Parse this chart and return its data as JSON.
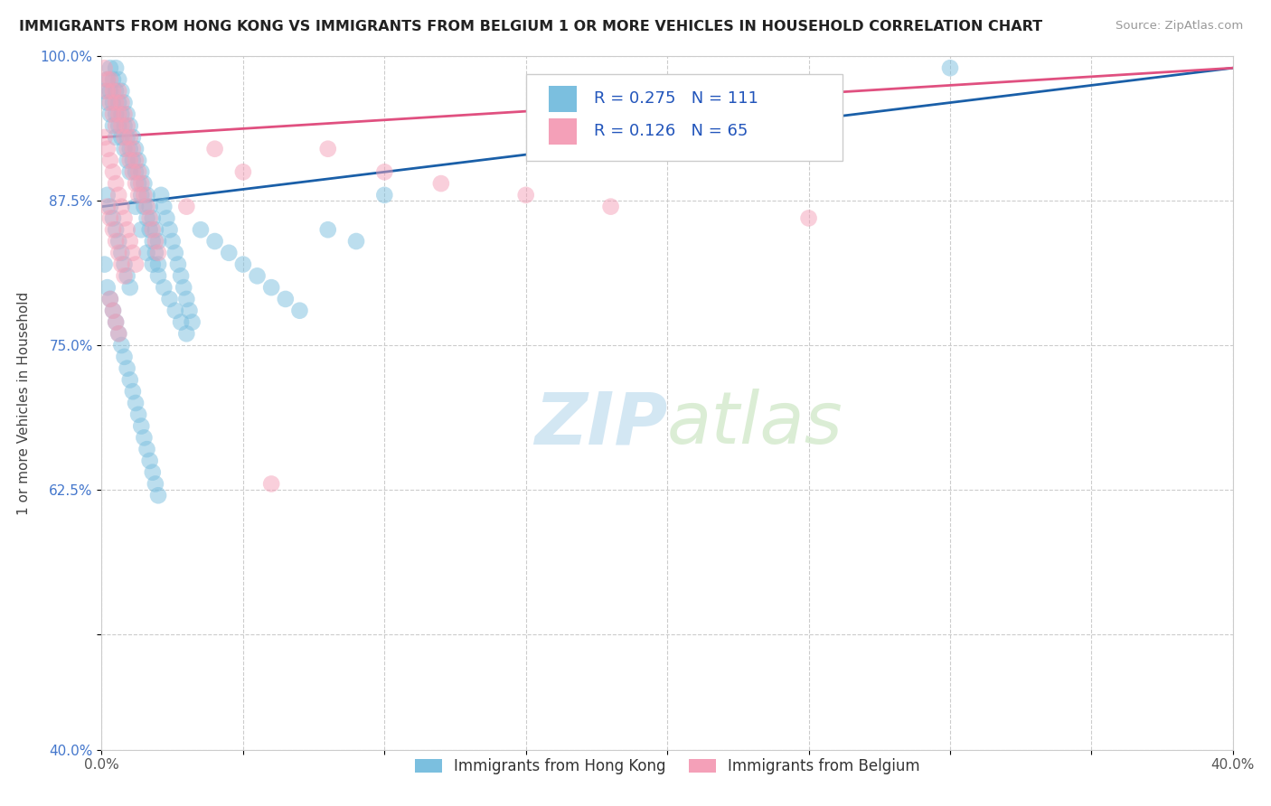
{
  "title": "IMMIGRANTS FROM HONG KONG VS IMMIGRANTS FROM BELGIUM 1 OR MORE VEHICLES IN HOUSEHOLD CORRELATION CHART",
  "source": "Source: ZipAtlas.com",
  "ylabel": "1 or more Vehicles in Household",
  "xlabel": "",
  "legend_label_1": "Immigrants from Hong Kong",
  "legend_label_2": "Immigrants from Belgium",
  "R1": 0.275,
  "N1": 111,
  "R2": 0.126,
  "N2": 65,
  "color_hk": "#7bbfdf",
  "color_be": "#f4a0b8",
  "color_hk_line": "#1a5fa8",
  "color_be_line": "#e05080",
  "xlim": [
    0.0,
    0.4
  ],
  "ylim": [
    0.4,
    1.0
  ],
  "xtick_vals": [
    0.0,
    0.05,
    0.1,
    0.15,
    0.2,
    0.25,
    0.3,
    0.35,
    0.4
  ],
  "ytick_vals": [
    0.4,
    0.5,
    0.625,
    0.75,
    0.875,
    1.0
  ],
  "xticklabels": [
    "0.0%",
    "",
    "",
    "",
    "",
    "",
    "",
    "",
    "40.0%"
  ],
  "yticklabels": [
    "40.0%",
    "",
    "62.5%",
    "75.0%",
    "87.5%",
    "100.0%"
  ],
  "hk_x": [
    0.001,
    0.002,
    0.002,
    0.003,
    0.003,
    0.003,
    0.004,
    0.004,
    0.004,
    0.005,
    0.005,
    0.005,
    0.005,
    0.006,
    0.006,
    0.006,
    0.007,
    0.007,
    0.007,
    0.008,
    0.008,
    0.008,
    0.009,
    0.009,
    0.009,
    0.01,
    0.01,
    0.01,
    0.011,
    0.011,
    0.012,
    0.012,
    0.013,
    0.013,
    0.014,
    0.014,
    0.015,
    0.015,
    0.016,
    0.016,
    0.017,
    0.017,
    0.018,
    0.018,
    0.019,
    0.019,
    0.02,
    0.02,
    0.021,
    0.022,
    0.023,
    0.024,
    0.025,
    0.026,
    0.027,
    0.028,
    0.029,
    0.03,
    0.031,
    0.032,
    0.001,
    0.002,
    0.003,
    0.004,
    0.005,
    0.006,
    0.007,
    0.008,
    0.009,
    0.01,
    0.011,
    0.012,
    0.013,
    0.014,
    0.015,
    0.016,
    0.017,
    0.018,
    0.019,
    0.02,
    0.002,
    0.003,
    0.004,
    0.005,
    0.006,
    0.007,
    0.008,
    0.009,
    0.01,
    0.012,
    0.014,
    0.016,
    0.018,
    0.02,
    0.022,
    0.024,
    0.026,
    0.028,
    0.03,
    0.035,
    0.04,
    0.045,
    0.05,
    0.055,
    0.06,
    0.065,
    0.07,
    0.08,
    0.09,
    0.1,
    0.3
  ],
  "hk_y": [
    0.97,
    0.98,
    0.96,
    0.99,
    0.97,
    0.95,
    0.98,
    0.96,
    0.94,
    0.99,
    0.97,
    0.95,
    0.93,
    0.98,
    0.96,
    0.94,
    0.97,
    0.95,
    0.93,
    0.96,
    0.94,
    0.92,
    0.95,
    0.93,
    0.91,
    0.94,
    0.92,
    0.9,
    0.93,
    0.91,
    0.92,
    0.9,
    0.91,
    0.89,
    0.9,
    0.88,
    0.89,
    0.87,
    0.88,
    0.86,
    0.87,
    0.85,
    0.86,
    0.84,
    0.85,
    0.83,
    0.84,
    0.82,
    0.88,
    0.87,
    0.86,
    0.85,
    0.84,
    0.83,
    0.82,
    0.81,
    0.8,
    0.79,
    0.78,
    0.77,
    0.82,
    0.8,
    0.79,
    0.78,
    0.77,
    0.76,
    0.75,
    0.74,
    0.73,
    0.72,
    0.71,
    0.7,
    0.69,
    0.68,
    0.67,
    0.66,
    0.65,
    0.64,
    0.63,
    0.62,
    0.88,
    0.87,
    0.86,
    0.85,
    0.84,
    0.83,
    0.82,
    0.81,
    0.8,
    0.87,
    0.85,
    0.83,
    0.82,
    0.81,
    0.8,
    0.79,
    0.78,
    0.77,
    0.76,
    0.85,
    0.84,
    0.83,
    0.82,
    0.81,
    0.8,
    0.79,
    0.78,
    0.85,
    0.84,
    0.88,
    0.99
  ],
  "be_x": [
    0.001,
    0.002,
    0.002,
    0.003,
    0.003,
    0.004,
    0.004,
    0.005,
    0.005,
    0.006,
    0.006,
    0.007,
    0.007,
    0.008,
    0.008,
    0.009,
    0.009,
    0.01,
    0.01,
    0.011,
    0.011,
    0.012,
    0.012,
    0.013,
    0.013,
    0.014,
    0.015,
    0.016,
    0.017,
    0.018,
    0.019,
    0.02,
    0.001,
    0.002,
    0.003,
    0.004,
    0.005,
    0.006,
    0.007,
    0.008,
    0.009,
    0.01,
    0.011,
    0.012,
    0.002,
    0.003,
    0.004,
    0.005,
    0.006,
    0.007,
    0.008,
    0.003,
    0.004,
    0.005,
    0.006,
    0.03,
    0.04,
    0.05,
    0.06,
    0.08,
    0.1,
    0.12,
    0.15,
    0.18,
    0.25
  ],
  "be_y": [
    0.99,
    0.98,
    0.97,
    0.98,
    0.96,
    0.97,
    0.95,
    0.96,
    0.94,
    0.97,
    0.95,
    0.96,
    0.94,
    0.95,
    0.93,
    0.94,
    0.92,
    0.93,
    0.91,
    0.92,
    0.9,
    0.91,
    0.89,
    0.9,
    0.88,
    0.89,
    0.88,
    0.87,
    0.86,
    0.85,
    0.84,
    0.83,
    0.93,
    0.92,
    0.91,
    0.9,
    0.89,
    0.88,
    0.87,
    0.86,
    0.85,
    0.84,
    0.83,
    0.82,
    0.87,
    0.86,
    0.85,
    0.84,
    0.83,
    0.82,
    0.81,
    0.79,
    0.78,
    0.77,
    0.76,
    0.87,
    0.92,
    0.9,
    0.63,
    0.92,
    0.9,
    0.89,
    0.88,
    0.87,
    0.86
  ]
}
